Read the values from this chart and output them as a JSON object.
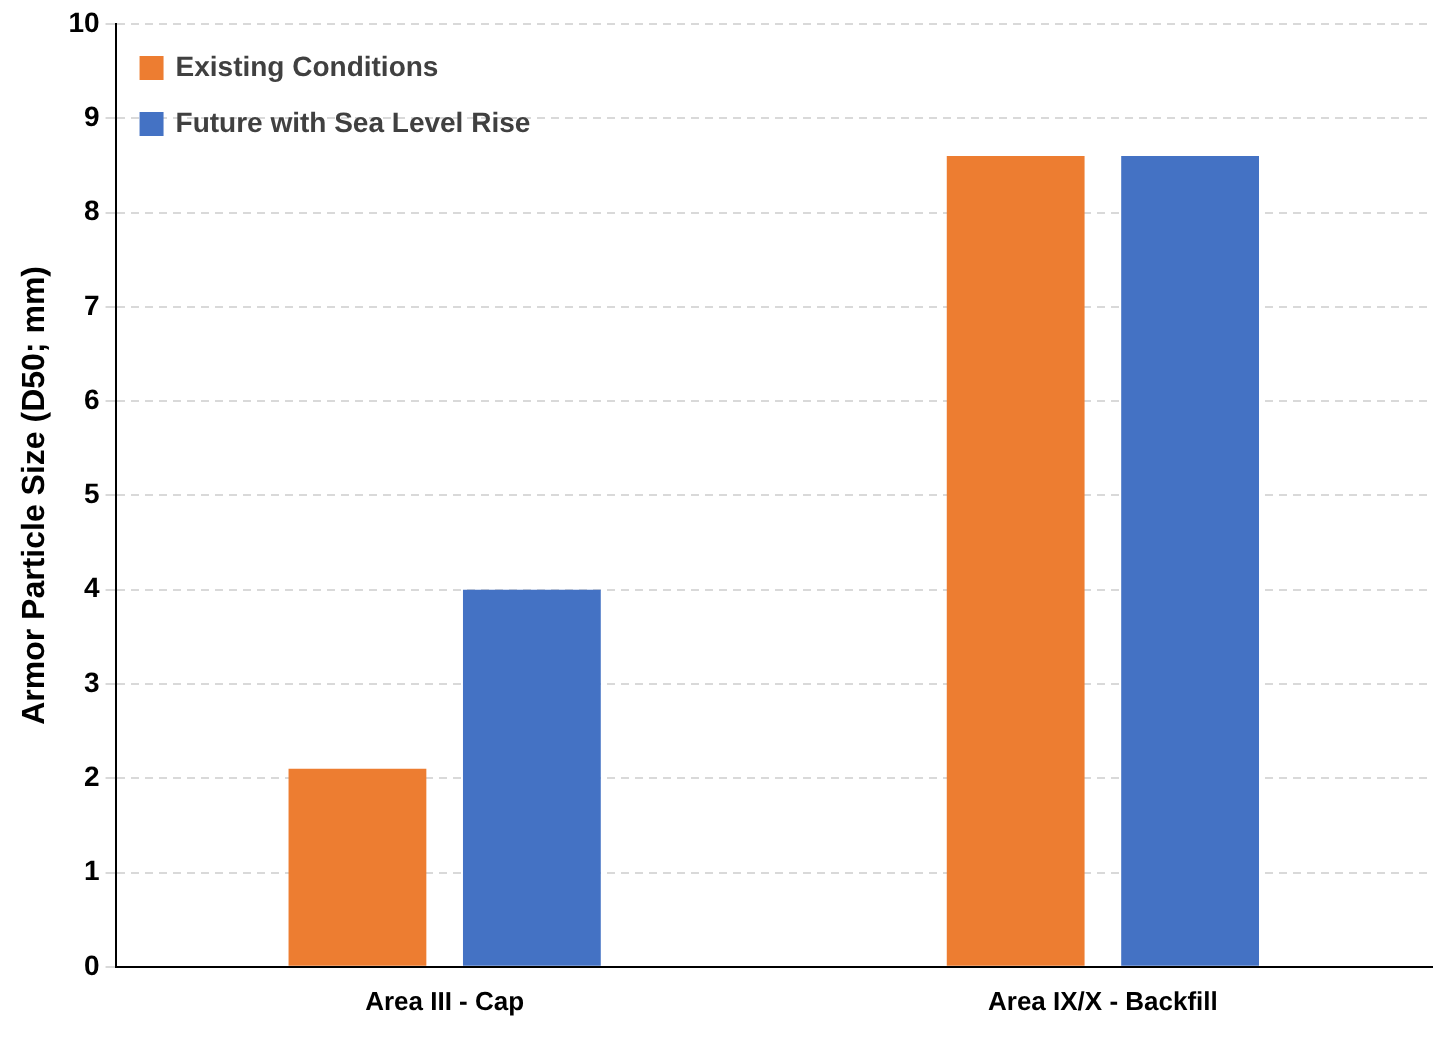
{
  "chart_data": {
    "type": "bar",
    "ylabel": "Armor Particle Size (D50; mm)",
    "categories": [
      "Area III - Cap",
      "Area IX/X - Backfill"
    ],
    "series": [
      {
        "name": "Existing Conditions",
        "color": "#ed7d31",
        "values": [
          2.1,
          8.6
        ]
      },
      {
        "name": "Future with Sea Level Rise",
        "color": "#4472c4",
        "values": [
          4.0,
          8.6
        ]
      }
    ],
    "ylim": [
      0,
      10
    ],
    "yticks": [
      0,
      1,
      2,
      3,
      4,
      5,
      6,
      7,
      8,
      9,
      10
    ],
    "grid": "y",
    "legend": "top left"
  }
}
